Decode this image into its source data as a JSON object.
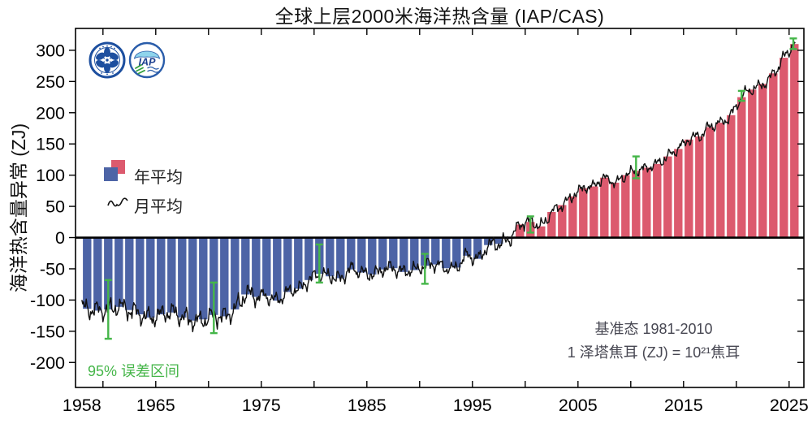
{
  "header": {
    "title": "全球上层2000米海洋热含量 (IAP/CAS)"
  },
  "axes": {
    "y_title": "海洋热含量异常 (ZJ)"
  },
  "legend": {
    "annual_label": "年平均",
    "monthly_label": "月平均"
  },
  "notes": {
    "baseline_line1": "基准态 1981-2010",
    "baseline_line2": "1 泽塔焦耳 (ZJ) = 10²¹焦耳",
    "error_caption": "95% 误差区间"
  },
  "logos": {
    "iap_text": "IAP"
  },
  "colors": {
    "bar_positive": "#dc5a6e",
    "bar_negative": "#4d64a6",
    "monthly_line": "#111111",
    "error_bar_green": "#45b649",
    "note_gray": "#474752",
    "axis_black": "#000000"
  },
  "chart_data": {
    "type": "bar",
    "title": "全球上层2000米海洋热含量 (IAP/CAS)",
    "xlabel": "",
    "ylabel": "海洋热含量异常 (ZJ)",
    "unit": "ZJ",
    "baseline": "1981-2010",
    "xlim": [
      1957.4,
      2026.4
    ],
    "ylim": [
      -240,
      335
    ],
    "grid": false,
    "y_ticks": [
      300,
      250,
      200,
      150,
      100,
      50,
      0,
      -50,
      -100,
      -150,
      -200
    ],
    "x_minor_ticks": [
      1960,
      1965,
      1970,
      1975,
      1980,
      1985,
      1990,
      1995,
      2000,
      2005,
      2010,
      2015,
      2020,
      2025
    ],
    "x_tick_labels": [
      1958,
      1965,
      1975,
      1985,
      1995,
      2005,
      2015,
      2025
    ],
    "series": [
      {
        "name": "年平均",
        "type": "bar",
        "color_positive": "#dc5a6e",
        "color_negative": "#4d64a6",
        "years": [
          1958,
          1959,
          1960,
          1961,
          1962,
          1963,
          1964,
          1965,
          1966,
          1967,
          1968,
          1969,
          1970,
          1971,
          1972,
          1973,
          1974,
          1975,
          1976,
          1977,
          1978,
          1979,
          1980,
          1981,
          1982,
          1983,
          1984,
          1985,
          1986,
          1987,
          1988,
          1989,
          1990,
          1991,
          1992,
          1993,
          1994,
          1995,
          1996,
          1997,
          1998,
          1999,
          2000,
          2001,
          2002,
          2003,
          2004,
          2005,
          2006,
          2007,
          2008,
          2009,
          2010,
          2011,
          2012,
          2013,
          2014,
          2015,
          2016,
          2017,
          2018,
          2019,
          2020,
          2021,
          2022,
          2023,
          2024,
          2025
        ],
        "values": [
          -114,
          -117,
          -115,
          -111,
          -116,
          -123,
          -128,
          -123,
          -120,
          -128,
          -133,
          -131,
          -124,
          -126,
          -115,
          -91,
          -95,
          -93,
          -101,
          -87,
          -82,
          -68,
          -58,
          -62,
          -65,
          -51,
          -56,
          -59,
          -51,
          -49,
          -55,
          -52,
          -45,
          -43,
          -49,
          -48,
          -29,
          -34,
          -12,
          -10,
          -2,
          21,
          25,
          18,
          41,
          52,
          66,
          79,
          82,
          96,
          88,
          100,
          107,
          112,
          118,
          130,
          142,
          157,
          162,
          177,
          184,
          196,
          225,
          237,
          246,
          263,
          288,
          310
        ]
      },
      {
        "name": "月平均",
        "type": "line",
        "color": "#111111",
        "start": 1958.0,
        "end": 2025.58,
        "note": "monthly curve follows the annual series with roughly ±10-15 ZJ monthly variability",
        "harmonics": [
          [
            0.83,
            6.5,
            0.4
          ],
          [
            2.23,
            4.5,
            1.3
          ],
          [
            4.71,
            3.2,
            2.1
          ]
        ],
        "jitter": 3.2
      }
    ],
    "error_bars": {
      "label": "95% 误差区间",
      "color": "#45b649",
      "points": [
        {
          "x": 1960.5,
          "low": -162,
          "high": -68
        },
        {
          "x": 1970.5,
          "low": -153,
          "high": -72
        },
        {
          "x": 1980.5,
          "low": -72,
          "high": -11
        },
        {
          "x": 1990.5,
          "low": -74,
          "high": -26
        },
        {
          "x": 2000.5,
          "low": 8,
          "high": 34
        },
        {
          "x": 2010.5,
          "low": 95,
          "high": 130
        },
        {
          "x": 2020.5,
          "low": 219,
          "high": 235
        },
        {
          "x": 2025.4,
          "low": 302,
          "high": 319
        }
      ]
    },
    "legend_position": "upper-left-inside",
    "annotations": [
      "基准态 1981-2010",
      "1 泽塔焦耳 (ZJ) = 10²¹焦耳",
      "95% 误差区间"
    ]
  }
}
